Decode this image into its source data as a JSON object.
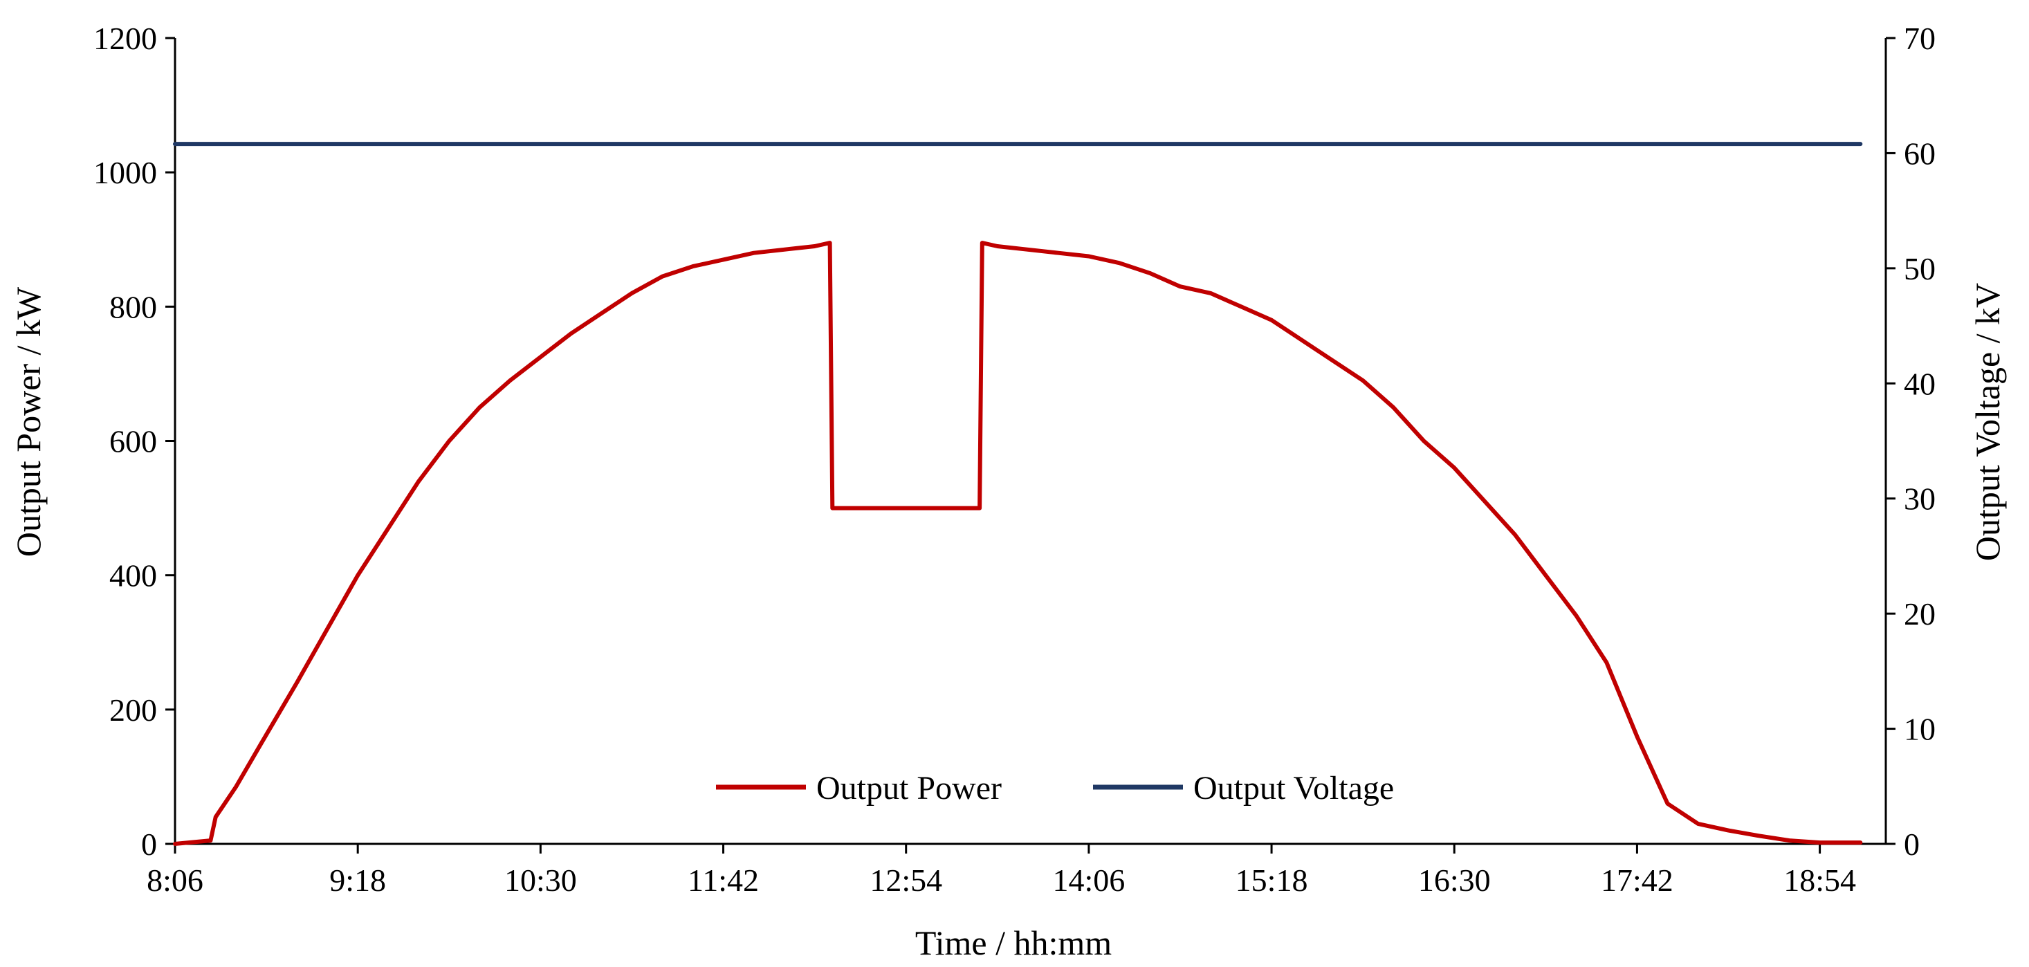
{
  "chart_data": {
    "type": "line",
    "title": "",
    "xlabel": "Time / hh:mm",
    "ylabel_left": "Output Power / kW",
    "ylabel_right": "Output Voltage / kV",
    "x_ticks": [
      "8:06",
      "9:18",
      "10:30",
      "11:42",
      "12:54",
      "14:06",
      "15:18",
      "16:30",
      "17:42",
      "18:54"
    ],
    "x_tick_minutes": [
      486,
      558,
      630,
      702,
      774,
      846,
      918,
      990,
      1062,
      1134
    ],
    "xlim_minutes": [
      486,
      1160
    ],
    "ylim_left": [
      0,
      1200
    ],
    "ylim_right": [
      0,
      70
    ],
    "y_left_ticks": [
      "0",
      "200",
      "400",
      "600",
      "800",
      "1000",
      "1200"
    ],
    "y_left_tick_values": [
      0,
      200,
      400,
      600,
      800,
      1000,
      1200
    ],
    "y_right_ticks": [
      "0",
      "10",
      "20",
      "30",
      "40",
      "50",
      "60",
      "70"
    ],
    "y_right_tick_values": [
      0,
      10,
      20,
      30,
      40,
      50,
      60,
      70
    ],
    "grid": false,
    "legend_position": "bottom-center",
    "series": [
      {
        "name": "Output Power",
        "axis": "left",
        "color": "#C00000",
        "x": [
          "8:06",
          "8:20",
          "8:22",
          "8:30",
          "8:40",
          "8:54",
          "9:06",
          "9:18",
          "9:30",
          "9:42",
          "9:54",
          "10:06",
          "10:18",
          "10:30",
          "10:42",
          "10:54",
          "11:06",
          "11:18",
          "11:30",
          "11:42",
          "11:54",
          "12:06",
          "12:18",
          "12:24",
          "12:25",
          "12:54",
          "13:23",
          "13:24",
          "13:30",
          "13:42",
          "13:54",
          "14:06",
          "14:18",
          "14:30",
          "14:42",
          "14:54",
          "15:06",
          "15:18",
          "15:30",
          "15:42",
          "15:54",
          "16:06",
          "16:18",
          "16:30",
          "16:42",
          "16:54",
          "17:06",
          "17:18",
          "17:30",
          "17:42",
          "17:54",
          "18:06",
          "18:18",
          "18:30",
          "18:42",
          "18:54",
          "19:06",
          "19:10"
        ],
        "values": [
          0,
          5,
          40,
          85,
          150,
          240,
          320,
          400,
          470,
          540,
          600,
          650,
          690,
          725,
          760,
          790,
          820,
          845,
          860,
          870,
          880,
          885,
          890,
          895,
          500,
          500,
          500,
          895,
          890,
          885,
          880,
          875,
          865,
          850,
          830,
          820,
          800,
          780,
          750,
          720,
          690,
          650,
          600,
          560,
          510,
          460,
          400,
          340,
          270,
          160,
          60,
          30,
          20,
          12,
          5,
          2,
          2,
          2
        ]
      },
      {
        "name": "Output Voltage",
        "axis": "right",
        "color": "#1F3864",
        "x": [
          "8:06",
          "19:10"
        ],
        "values": [
          60.8,
          60.8
        ]
      }
    ]
  }
}
